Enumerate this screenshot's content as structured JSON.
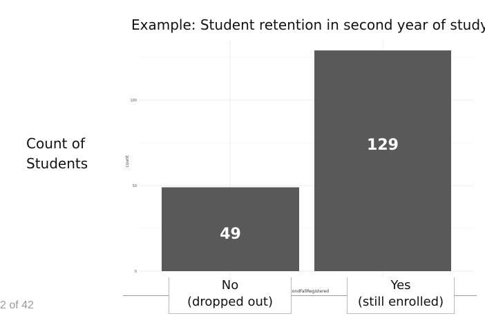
{
  "slide": {
    "title": "Example: Student retention in second year of study",
    "y_label_line1": "Count of",
    "y_label_line2": "Students",
    "x_label_no_line1": "No",
    "x_label_no_line2": "(dropped out)",
    "x_label_yes_line1": "Yes",
    "x_label_yes_line2": "(still enrolled)",
    "page_number": "2 of 42"
  },
  "chart_data": {
    "type": "bar",
    "categories": [
      "No",
      "Yes"
    ],
    "values": [
      49,
      129
    ],
    "data_labels": [
      "49",
      "129"
    ],
    "ylabel": "count",
    "xlabel": "SecondFallRegistered",
    "yticks": [
      0,
      50,
      100
    ],
    "ylim": [
      0,
      136
    ],
    "grid": true,
    "colors": {
      "bar": "#595959",
      "bar_label": "#ffffff",
      "panel_bg": "#ffffff",
      "grid": "#ebebeb"
    }
  }
}
